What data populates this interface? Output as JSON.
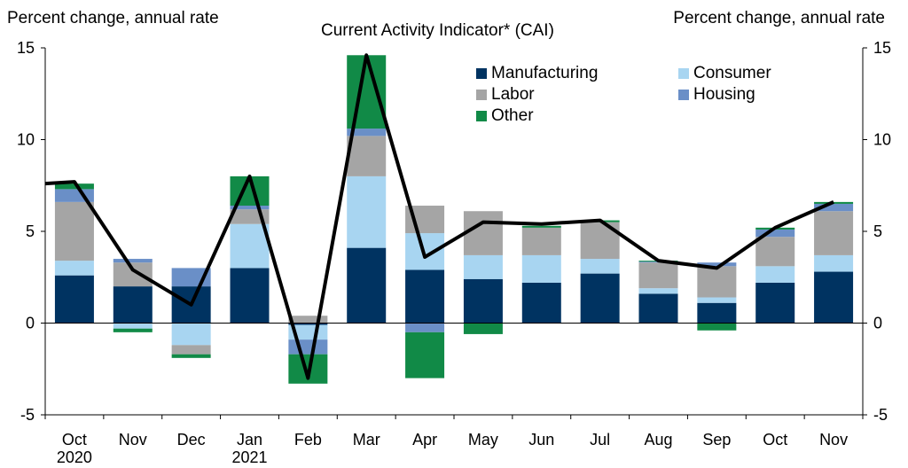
{
  "chart_data": {
    "type": "bar",
    "title": "Current Activity Indicator* (CAI)",
    "ylabel_left": "Percent change, annual rate",
    "ylabel_right": "Percent change, annual rate",
    "ylim": [
      -5,
      15
    ],
    "yticks": [
      15,
      10,
      5,
      0,
      -5
    ],
    "categories": [
      "Oct",
      "Nov",
      "Dec",
      "Jan",
      "Feb",
      "Mar",
      "Apr",
      "May",
      "Jun",
      "Jul",
      "Aug",
      "Sep",
      "Oct",
      "Nov"
    ],
    "year_labels": [
      {
        "category_index": 0,
        "label": "2020"
      },
      {
        "category_index": 3,
        "label": "2021"
      }
    ],
    "stacked": true,
    "series": [
      {
        "name": "Manufacturing",
        "color": "#003361",
        "values": [
          2.6,
          2.0,
          2.0,
          3.0,
          -0.1,
          4.1,
          2.9,
          2.4,
          2.2,
          2.7,
          1.6,
          1.1,
          2.2,
          2.8
        ]
      },
      {
        "name": "Consumer",
        "color": "#a8d5f1",
        "values": [
          0.8,
          -0.3,
          -1.2,
          2.4,
          -0.8,
          3.9,
          2.0,
          1.3,
          1.5,
          0.8,
          0.3,
          0.3,
          0.9,
          0.9
        ]
      },
      {
        "name": "Labor",
        "color": "#a5a5a5",
        "values": [
          3.2,
          1.3,
          -0.5,
          0.8,
          0.4,
          2.2,
          1.5,
          2.4,
          1.5,
          2.0,
          1.4,
          1.7,
          1.6,
          2.4
        ]
      },
      {
        "name": "Housing",
        "color": "#6a8fc7",
        "values": [
          0.7,
          0.2,
          1.0,
          0.2,
          -0.8,
          0.4,
          -0.5,
          0.0,
          0.0,
          0.0,
          0.05,
          0.2,
          0.4,
          0.4
        ]
      },
      {
        "name": "Other",
        "color": "#118a47",
        "values": [
          0.3,
          -0.2,
          -0.2,
          1.6,
          -1.6,
          4.0,
          -2.5,
          -0.6,
          0.1,
          0.1,
          0.05,
          -0.4,
          0.1,
          0.1
        ]
      }
    ],
    "line": {
      "name": "CAI",
      "color": "#000000",
      "start_value": 7.6,
      "values": [
        7.7,
        2.9,
        1.0,
        8.0,
        -3.0,
        14.6,
        3.6,
        5.5,
        5.4,
        5.6,
        3.4,
        3.0,
        5.2,
        6.6
      ]
    },
    "legend_position": "top-right"
  }
}
